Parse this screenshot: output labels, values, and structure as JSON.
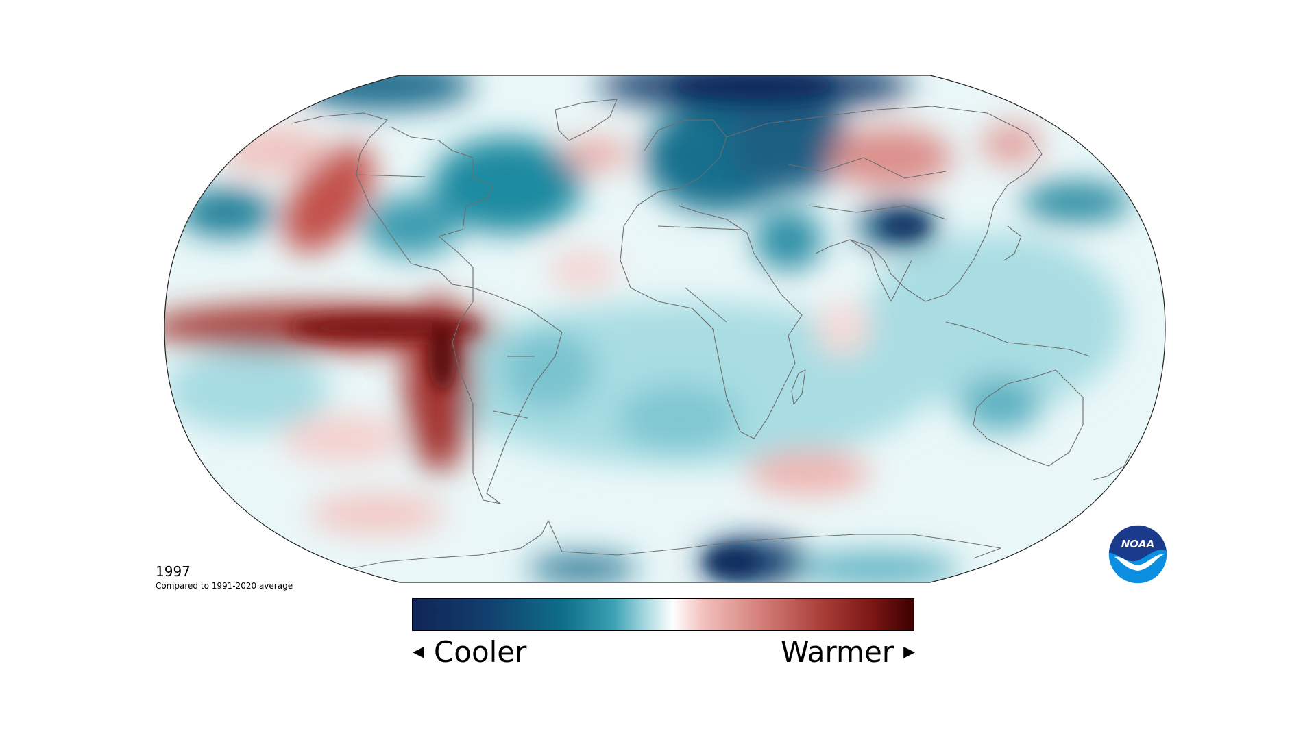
{
  "map": {
    "projection": "robinson",
    "year": "1997",
    "baseline_text": "Compared to 1991-2020 average"
  },
  "colorbar": {
    "cool_label": "Cooler",
    "warm_label": "Warmer",
    "stops": [
      "#0f2456",
      "#12406e",
      "#0e6e89",
      "#3aa0b2",
      "#9fd5dd",
      "#ffffff",
      "#f2c0bd",
      "#d37c77",
      "#a83c37",
      "#7a1614",
      "#3b0000"
    ]
  },
  "logo": {
    "text": "NOAA",
    "colors": {
      "top": "#1a3b8c",
      "bottom": "#0c8fe0",
      "bird": "#ffffff"
    }
  },
  "anomaly_colors": {
    "deep_cool": "#133866",
    "cool": "#1b7a92",
    "light_cool": "#8fcfd8",
    "neutral": "#e9f6f8",
    "light_warm": "#efb7b3",
    "warm": "#c3534c",
    "deep_warm": "#6e0f0c"
  }
}
